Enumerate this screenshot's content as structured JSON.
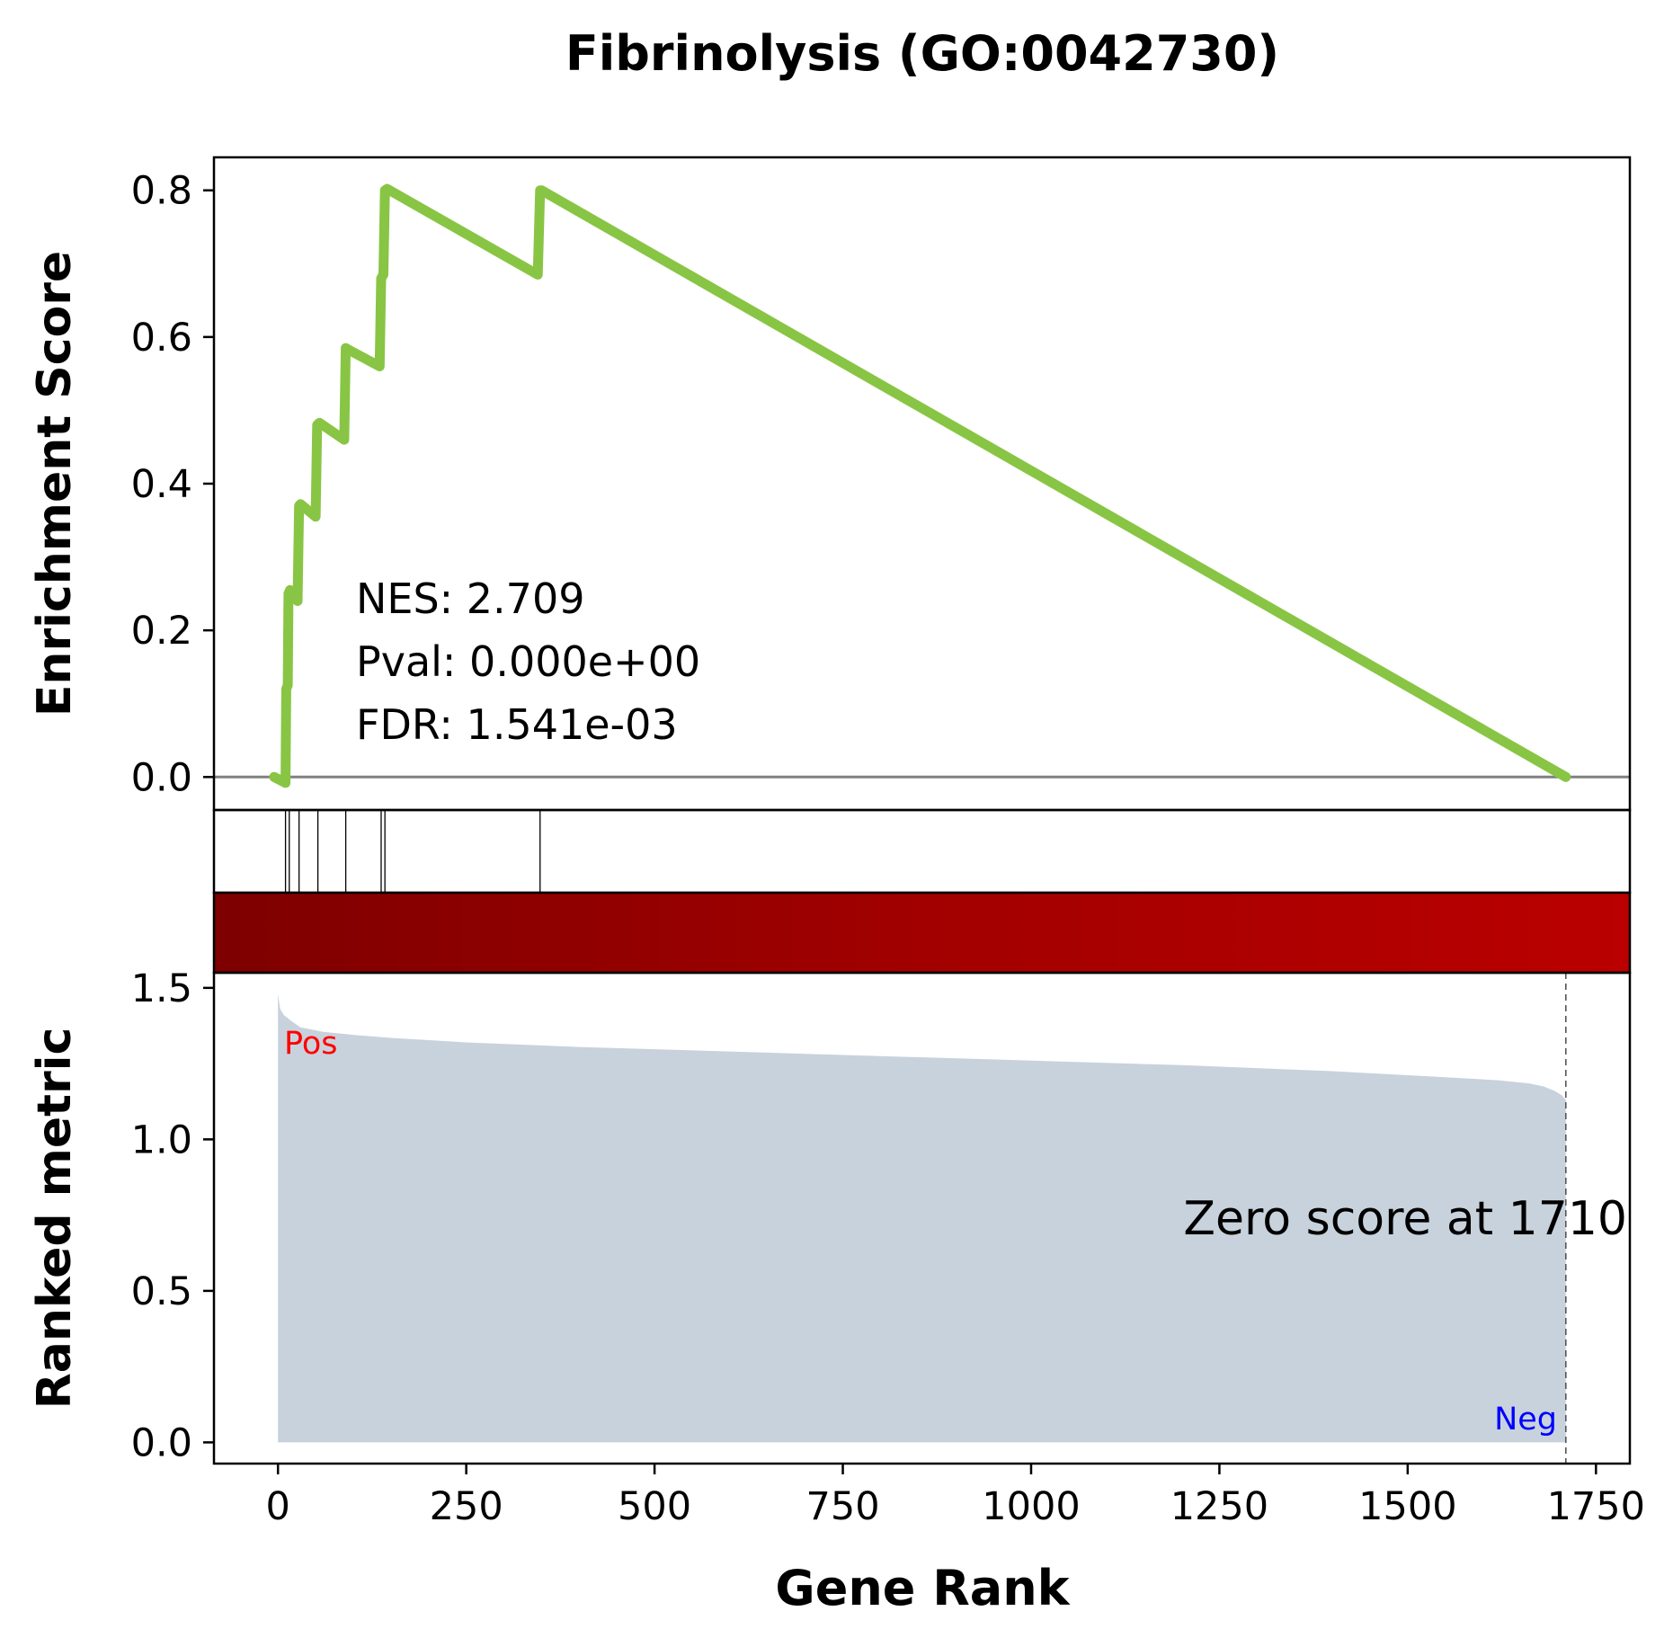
{
  "chart_data": {
    "type": "line",
    "title": "Fibrinolysis (GO:0042730)",
    "xlabel": "Gene Rank",
    "xlim": [
      -85,
      1795
    ],
    "x_ticks": [
      0,
      250,
      500,
      750,
      1000,
      1250,
      1500,
      1750
    ],
    "enrichment": {
      "ylabel": "Enrichment Score",
      "ylim": [
        -0.045,
        0.845
      ],
      "y_ticks": [
        "0.0",
        "0.2",
        "0.4",
        "0.6",
        "0.8"
      ],
      "y_tick_values": [
        0,
        0.2,
        0.4,
        0.6,
        0.8
      ],
      "line_color": "#88c544",
      "baseline_color": "#808080",
      "points": [
        [
          -5,
          0.0
        ],
        [
          10,
          -0.008
        ],
        [
          11,
          0.12
        ],
        [
          13,
          0.125
        ],
        [
          14,
          0.25
        ],
        [
          16,
          0.255
        ],
        [
          26,
          0.24
        ],
        [
          28,
          0.37
        ],
        [
          30,
          0.372
        ],
        [
          50,
          0.355
        ],
        [
          52,
          0.48
        ],
        [
          55,
          0.483
        ],
        [
          88,
          0.46
        ],
        [
          90,
          0.585
        ],
        [
          93,
          0.583
        ],
        [
          135,
          0.56
        ],
        [
          137,
          0.68
        ],
        [
          140,
          0.685
        ],
        [
          142,
          0.8
        ],
        [
          145,
          0.802
        ],
        [
          345,
          0.685
        ],
        [
          348,
          0.8
        ],
        [
          350,
          0.8
        ],
        [
          1710,
          0.0
        ]
      ],
      "annotation": {
        "nes": "NES: 2.709",
        "pval": "Pval: 0.000e+00",
        "fdr": "FDR: 1.541e-03"
      }
    },
    "hits": {
      "positions": [
        10,
        15,
        28,
        53,
        90,
        137,
        142,
        348
      ],
      "color": "#000000"
    },
    "heatbar": {
      "colors": [
        "#7e0000",
        "#a20000",
        "#ba0000"
      ]
    },
    "ranked_metric": {
      "ylabel": "Ranked metric",
      "ylim": [
        -0.07,
        1.55
      ],
      "y_ticks": [
        "0.0",
        "0.5",
        "1.0",
        "1.5"
      ],
      "y_tick_values": [
        0,
        0.5,
        1.0,
        1.5
      ],
      "fill_color": "#c8d2dc",
      "curve": [
        [
          0,
          1.48
        ],
        [
          3,
          1.43
        ],
        [
          8,
          1.41
        ],
        [
          18,
          1.39
        ],
        [
          30,
          1.37
        ],
        [
          60,
          1.355
        ],
        [
          100,
          1.345
        ],
        [
          150,
          1.335
        ],
        [
          250,
          1.32
        ],
        [
          400,
          1.305
        ],
        [
          600,
          1.29
        ],
        [
          800,
          1.275
        ],
        [
          1000,
          1.26
        ],
        [
          1200,
          1.245
        ],
        [
          1400,
          1.225
        ],
        [
          1550,
          1.205
        ],
        [
          1620,
          1.195
        ],
        [
          1660,
          1.185
        ],
        [
          1680,
          1.175
        ],
        [
          1695,
          1.16
        ],
        [
          1705,
          1.145
        ],
        [
          1710,
          1.13
        ]
      ],
      "zero_score_at": 1710,
      "zero_score_label": "Zero score at 1710",
      "pos_label": "Pos",
      "neg_label": "Neg",
      "pos_color": "#ff0000",
      "neg_color": "#0000ff"
    }
  }
}
